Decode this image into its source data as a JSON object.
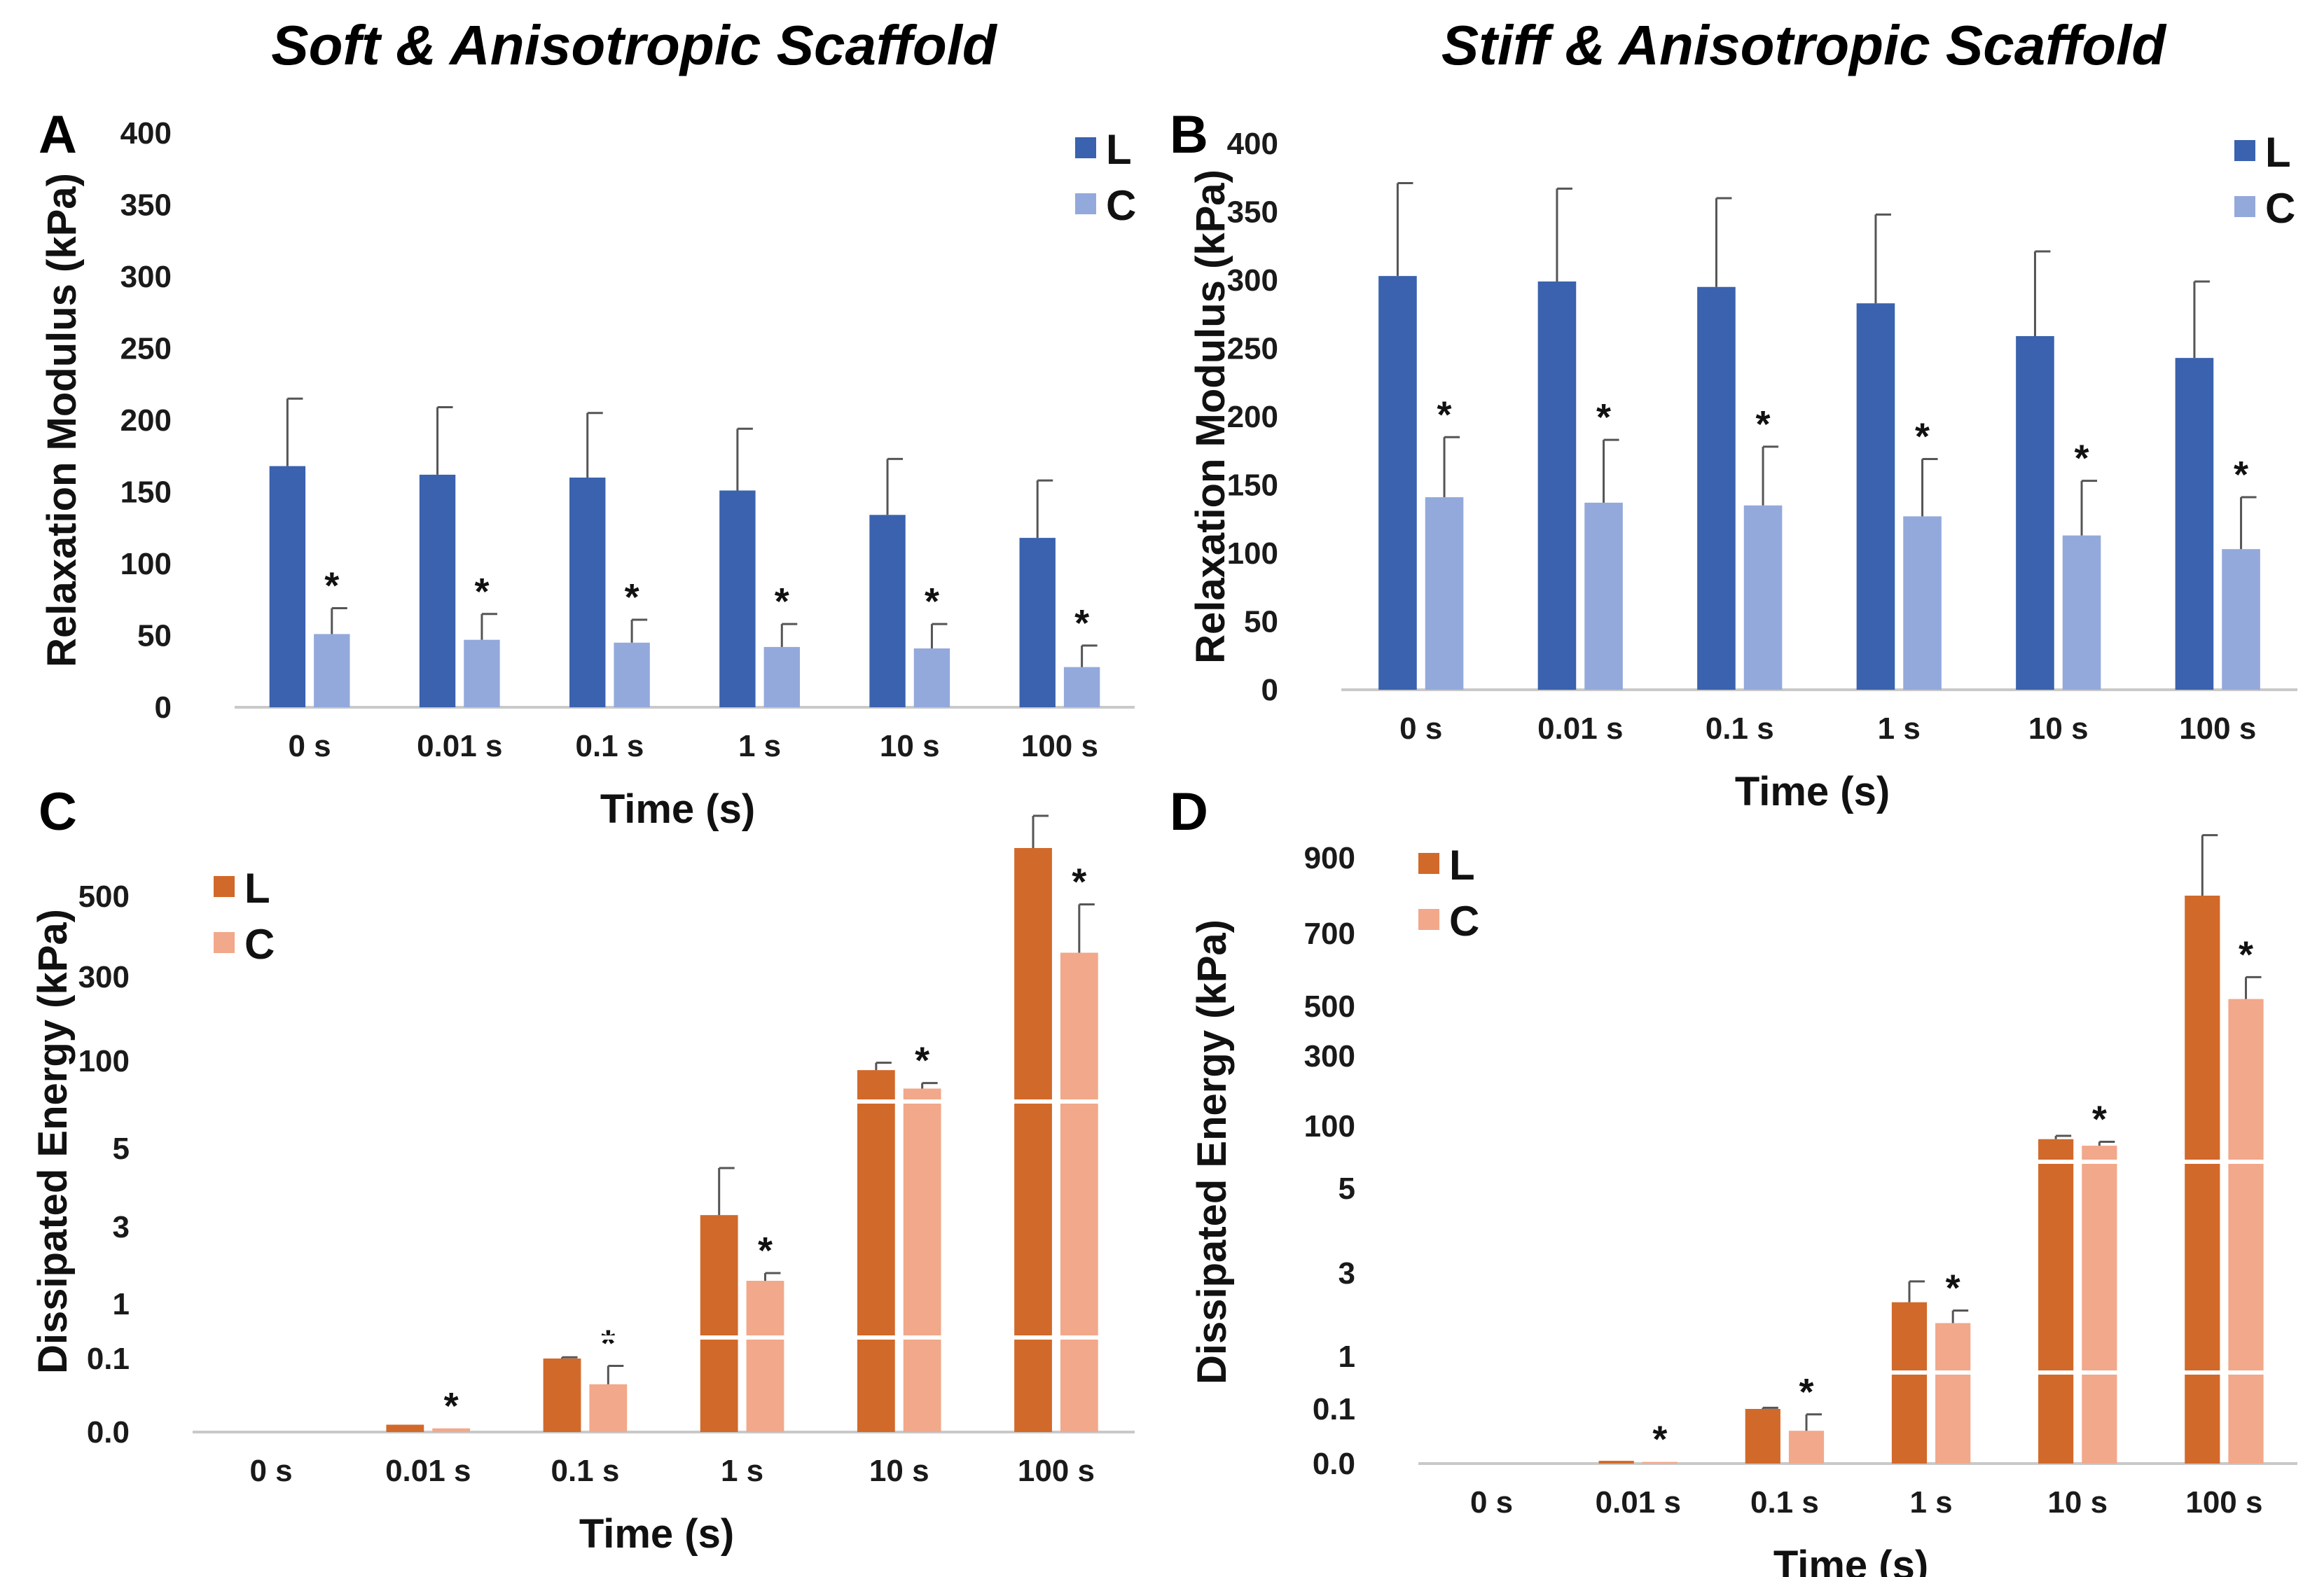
{
  "titles": {
    "left": "Soft & Anisotropic Scaffold",
    "right": "Stiff & Anisotropic Scaffold"
  },
  "colors": {
    "L_blue": "#3a62ae",
    "C_blue": "#93a9dc",
    "L_orange": "#d1692a",
    "C_orange": "#f2a88a",
    "error_bar": "#555555",
    "axis": "#c9c9c9"
  },
  "chart_data": [
    {
      "panel": "A",
      "type": "bar",
      "scale": "linear",
      "xlabel": "Time (s)",
      "ylabel": "Relaxation Modulus (kPa)",
      "categories": [
        "0 s",
        "0.01 s",
        "0.1 s",
        "1 s",
        "10 s",
        "100 s"
      ],
      "yticks": [
        "0",
        "50",
        "100",
        "150",
        "200",
        "250",
        "300",
        "350",
        "400"
      ],
      "ylim": [
        0,
        400
      ],
      "legend": [
        "L",
        "C"
      ],
      "legend_position": "top-right",
      "series": [
        {
          "name": "L",
          "values": [
            168,
            162,
            160,
            151,
            134,
            118
          ],
          "errors": [
            47,
            47,
            45,
            43,
            39,
            40
          ]
        },
        {
          "name": "C",
          "values": [
            51,
            47,
            45,
            42,
            41,
            28
          ],
          "errors": [
            18,
            18,
            16,
            16,
            17,
            15
          ]
        }
      ],
      "significance": [
        "*",
        "*",
        "*",
        "*",
        "*",
        "*"
      ]
    },
    {
      "panel": "B",
      "type": "bar",
      "scale": "linear",
      "xlabel": "Time (s)",
      "ylabel": "Relaxation Modulus (kPa)",
      "categories": [
        "0 s",
        "0.01 s",
        "0.1 s",
        "1 s",
        "10 s",
        "100 s"
      ],
      "yticks": [
        "0",
        "50",
        "100",
        "150",
        "200",
        "250",
        "300",
        "350",
        "400"
      ],
      "ylim": [
        0,
        400
      ],
      "legend": [
        "L",
        "C"
      ],
      "legend_position": "top-right",
      "series": [
        {
          "name": "L",
          "values": [
            303,
            299,
            295,
            283,
            259,
            243
          ],
          "errors": [
            68,
            68,
            65,
            65,
            62,
            56
          ]
        },
        {
          "name": "C",
          "values": [
            141,
            137,
            135,
            127,
            113,
            103
          ],
          "errors": [
            44,
            46,
            43,
            42,
            40,
            38
          ]
        }
      ],
      "significance": [
        "*",
        "*",
        "*",
        "*",
        "*",
        "*"
      ]
    },
    {
      "panel": "C",
      "type": "bar",
      "scale": "broken-log",
      "xlabel": "Time (s)",
      "ylabel": "Dissipated Energy (kPa)",
      "categories": [
        "0 s",
        "0.01 s",
        "0.1 s",
        "1 s",
        "10 s",
        "100 s"
      ],
      "yticks": [
        "0.0",
        "0.1",
        "1",
        "3",
        "5",
        "100",
        "300",
        "500"
      ],
      "legend": [
        "L",
        "C"
      ],
      "legend_position": "top-left",
      "series": [
        {
          "name": "L",
          "values": [
            0.0,
            0.01,
            0.1,
            3.3,
            90,
            620
          ],
          "errors_upper": [
            0,
            0,
            0.12,
            4.5,
            98,
            700
          ]
        },
        {
          "name": "C",
          "values": [
            0.0,
            0.005,
            0.065,
            1.6,
            70,
            360
          ],
          "errors_upper": [
            0,
            0,
            0.09,
            1.8,
            76,
            480
          ]
        }
      ],
      "significance": [
        "",
        "*",
        "*",
        "*",
        "*",
        "*"
      ]
    },
    {
      "panel": "D",
      "type": "bar",
      "scale": "broken-log",
      "xlabel": "Time (s)",
      "ylabel": "Dissipated Energy (kPa)",
      "categories": [
        "0 s",
        "0.01 s",
        "0.1 s",
        "1 s",
        "10 s",
        "100 s"
      ],
      "yticks": [
        "0.0",
        "0.1",
        "1",
        "3",
        "5",
        "100",
        "300",
        "500",
        "700",
        "900"
      ],
      "legend": [
        "L",
        "C"
      ],
      "legend_position": "top-left",
      "series": [
        {
          "name": "L",
          "values": [
            0.0,
            0.005,
            0.1,
            2.3,
            80,
            800
          ],
          "errors_upper": [
            0,
            0,
            0.12,
            2.8,
            85,
            960
          ]
        },
        {
          "name": "C",
          "values": [
            0.0,
            0.003,
            0.06,
            1.8,
            70,
            520
          ],
          "errors_upper": [
            0,
            0,
            0.09,
            2.1,
            76,
            580
          ]
        }
      ],
      "significance": [
        "",
        "*",
        "*",
        "*",
        "*",
        "*"
      ]
    }
  ]
}
